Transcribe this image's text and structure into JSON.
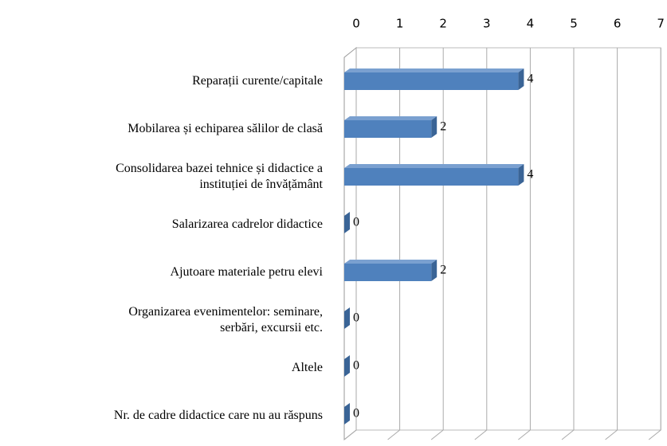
{
  "chart_data": {
    "type": "bar",
    "orientation": "horizontal",
    "categories": [
      "Reparații curente/capitale",
      "Mobilarea și echiparea sălilor de clasă",
      "Consolidarea bazei tehnice și didactice a instituției de învățământ",
      "Salarizarea cadrelor didactice",
      "Ajutoare materiale petru elevi",
      "Organizarea evenimentelor: seminare, serbări, excursii etc.",
      "Altele",
      "Nr. de cadre didactice care nu au răspuns"
    ],
    "values": [
      4,
      2,
      4,
      0,
      2,
      0,
      0,
      0
    ],
    "color": "#4f81bd",
    "xlim": [
      0,
      7
    ],
    "xticks": [
      0,
      1,
      2,
      3,
      4,
      5,
      6,
      7
    ],
    "grid": true
  }
}
